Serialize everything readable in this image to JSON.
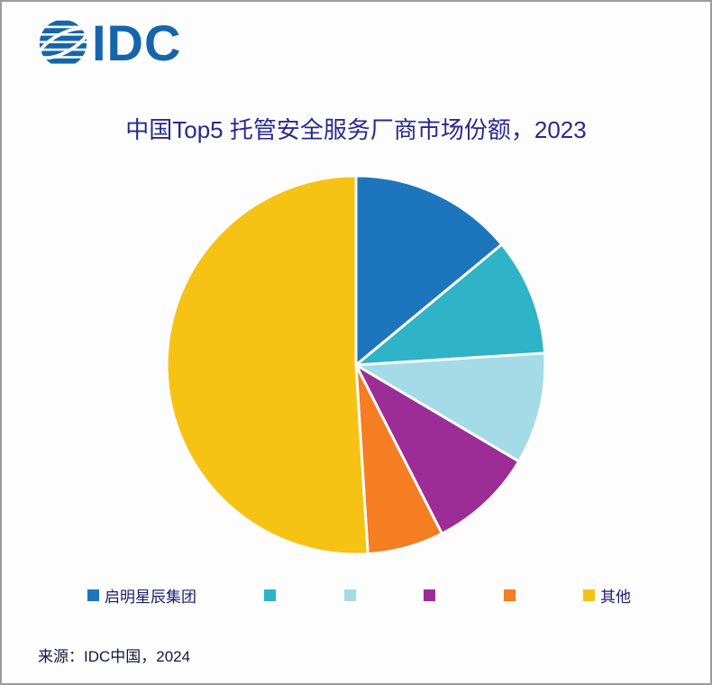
{
  "logo": {
    "text": "IDC",
    "color": "#1565ac"
  },
  "chart_data": {
    "type": "pie",
    "title": "中国Top5 托管安全服务厂商市场份额，2023",
    "start_angle_deg": 0,
    "direction": "clockwise",
    "legend_position": "bottom",
    "slices": [
      {
        "label": "启明星辰集团",
        "value": 14,
        "color": "#1d76bc"
      },
      {
        "label": "",
        "value": 10,
        "color": "#2eb3c7"
      },
      {
        "label": "",
        "value": 9.5,
        "color": "#a5dbe7"
      },
      {
        "label": "",
        "value": 9,
        "color": "#9c2d96"
      },
      {
        "label": "",
        "value": 6.5,
        "color": "#f57d22"
      },
      {
        "label": "其他",
        "value": 51,
        "color": "#f6c315"
      }
    ]
  },
  "footer": {
    "source": "来源：IDC中国，2024"
  }
}
